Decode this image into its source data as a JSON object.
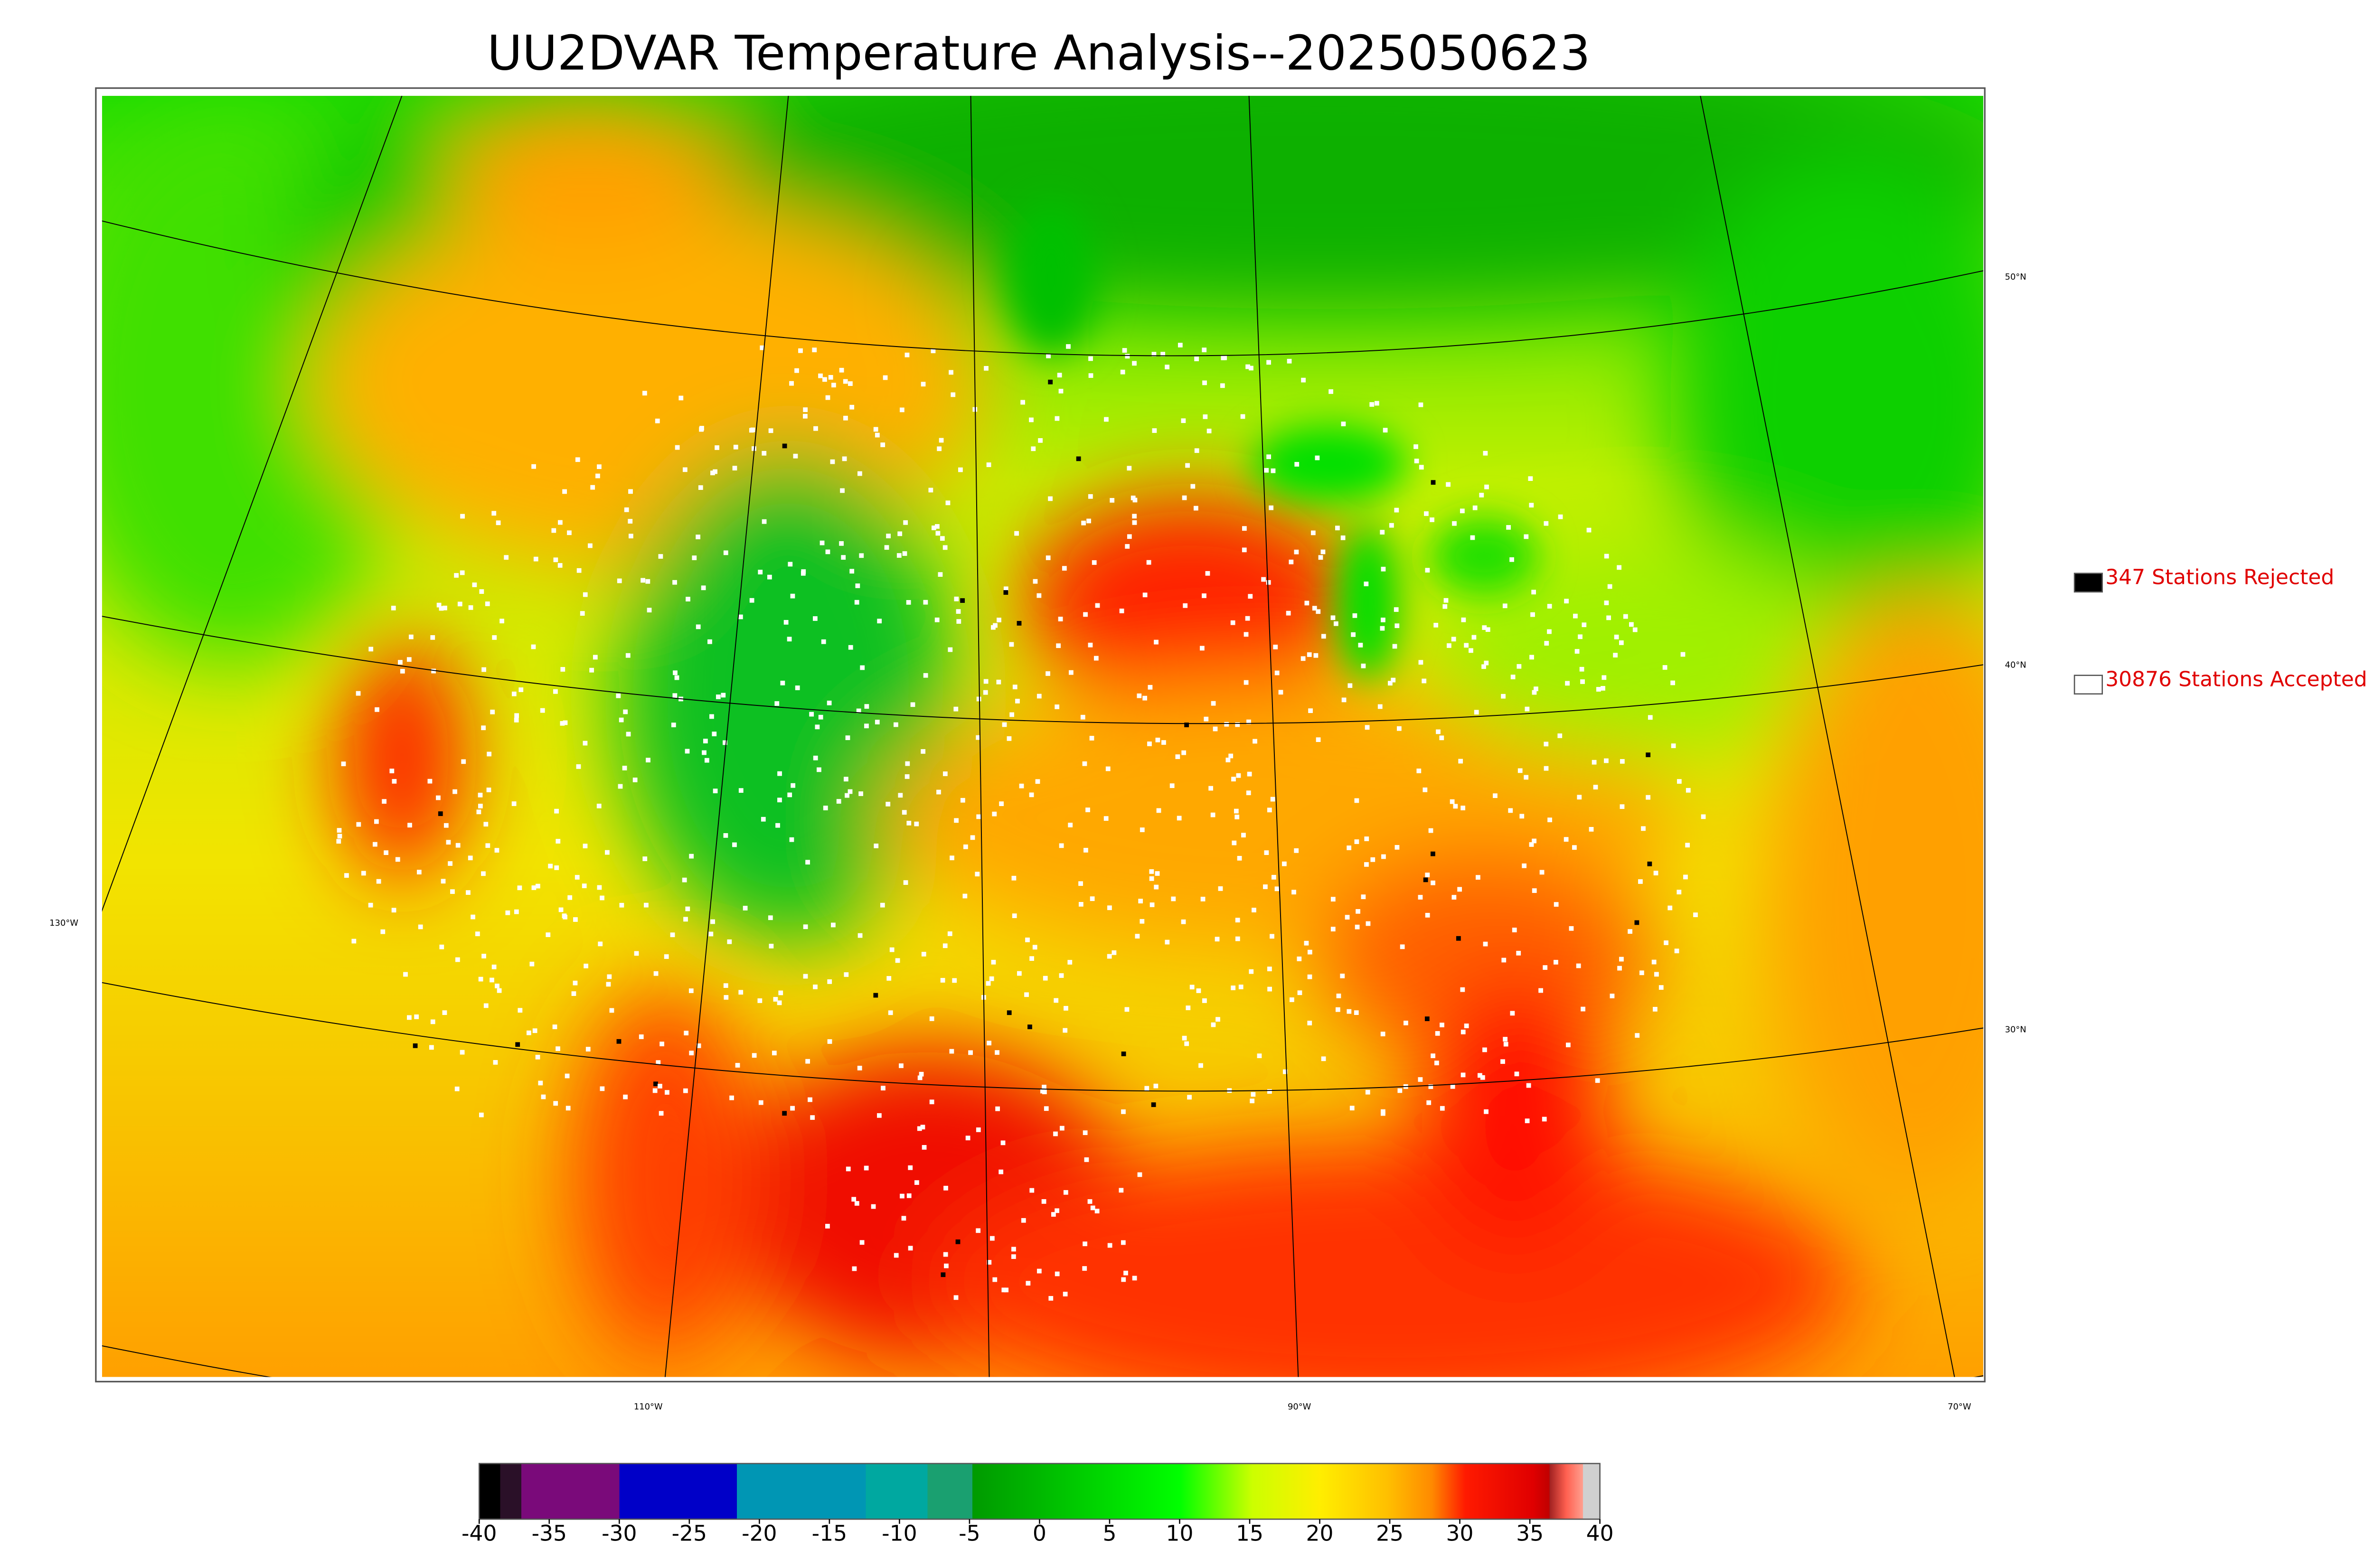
{
  "title": "UU2DVAR Temperature Analysis--2025050623",
  "map": {
    "latitude_labels": [
      "50°N",
      "40°N",
      "30°N"
    ],
    "longitude_labels": [
      "130°W",
      "110°W",
      "90°W",
      "70°W"
    ]
  },
  "legend": {
    "items": [
      {
        "label": "347 Stations Rejected",
        "color": "#000000"
      },
      {
        "label": "30876 Stations Accepted",
        "color": "#ffffff"
      }
    ]
  },
  "colorbar": {
    "range": [
      -40,
      40
    ],
    "ticks": [
      -40,
      -35,
      -30,
      -25,
      -20,
      -15,
      -10,
      -5,
      0,
      5,
      10,
      15,
      20,
      25,
      30,
      35,
      40
    ]
  }
}
